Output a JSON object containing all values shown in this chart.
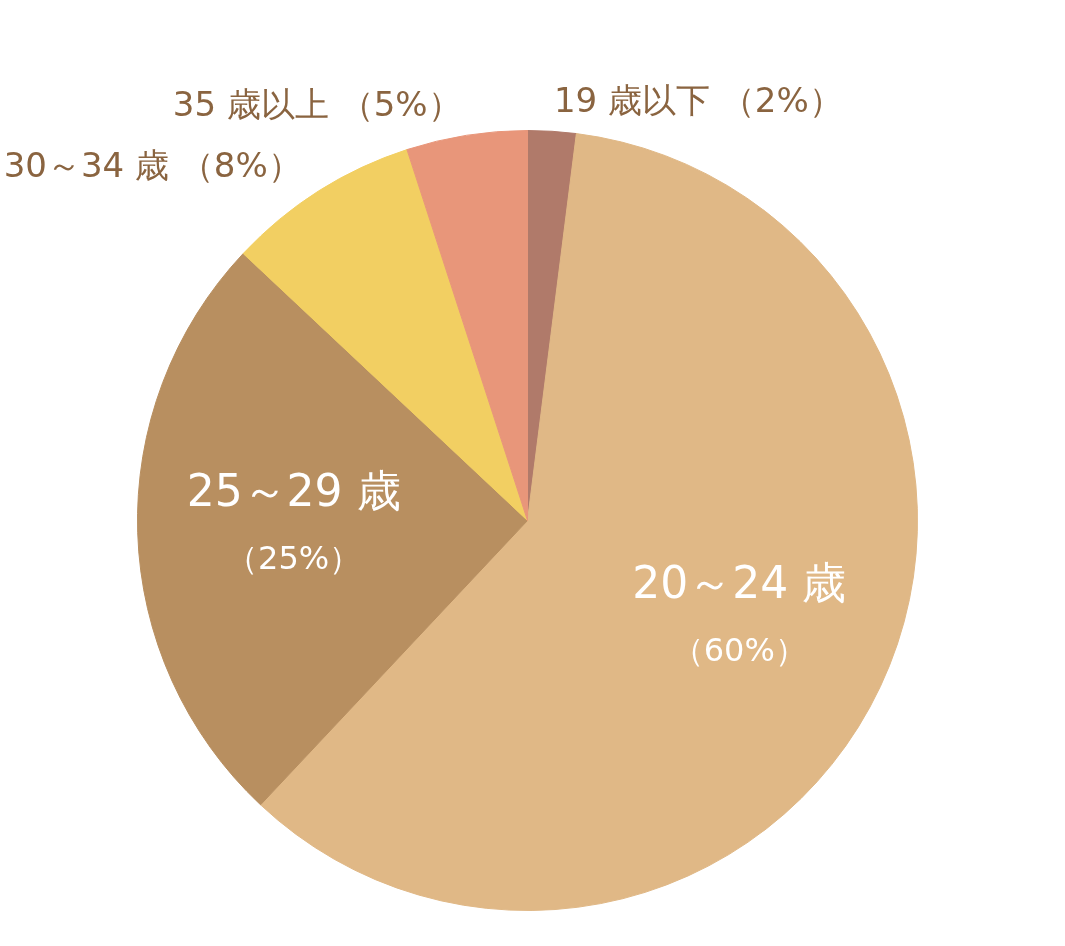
{
  "chart_data": {
    "type": "pie",
    "categories": [
      "19 歳以下",
      "20～24 歳",
      "25～29 歳",
      "30～34 歳",
      "35 歳以上"
    ],
    "values": [
      2,
      60,
      25,
      8,
      5
    ],
    "colors": [
      "#b07a6a",
      "#e0b886",
      "#b88f60",
      "#f2cf62",
      "#e8967a"
    ],
    "value_labels": [
      "（2%）",
      "（60%）",
      "（25%）",
      "（8%）",
      "（5%）"
    ]
  }
}
